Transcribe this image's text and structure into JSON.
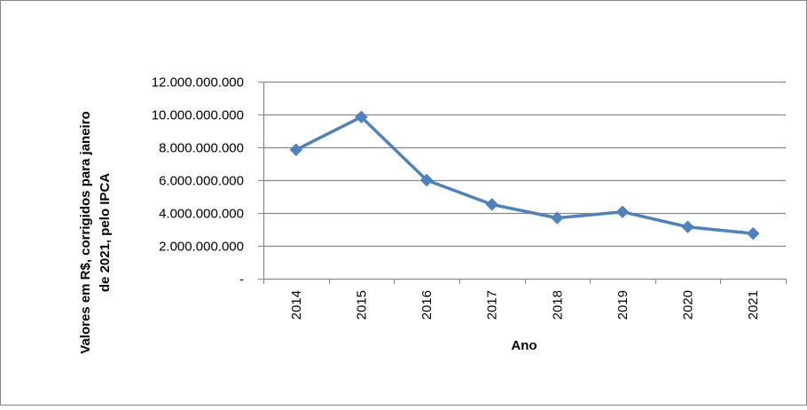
{
  "chart_data": {
    "type": "line",
    "title": "",
    "xlabel": "Ano",
    "ylabel_lines": [
      "Valores em R$, corrigidos para janeiro",
      "de 2021, pelo IPCA"
    ],
    "categories": [
      "2014",
      "2015",
      "2016",
      "2017",
      "2018",
      "2019",
      "2020",
      "2021"
    ],
    "series": [
      {
        "values": [
          7850000000,
          9850000000,
          6000000000,
          4520000000,
          3700000000,
          4070000000,
          3150000000,
          2750000000
        ]
      }
    ],
    "ylim": [
      0,
      12000000000
    ],
    "yticks": [
      0,
      2000000000,
      4000000000,
      6000000000,
      8000000000,
      10000000000,
      12000000000
    ],
    "ytick_labels": [
      "-",
      "2.000.000.000",
      "4.000.000.000",
      "6.000.000.000",
      "8.000.000.000",
      "10.000.000.000",
      "12.000.000.000"
    ],
    "grid": true,
    "legend": "none",
    "line_color": "#4f81bd",
    "grid_color": "#868686",
    "border_color": "#868686"
  }
}
